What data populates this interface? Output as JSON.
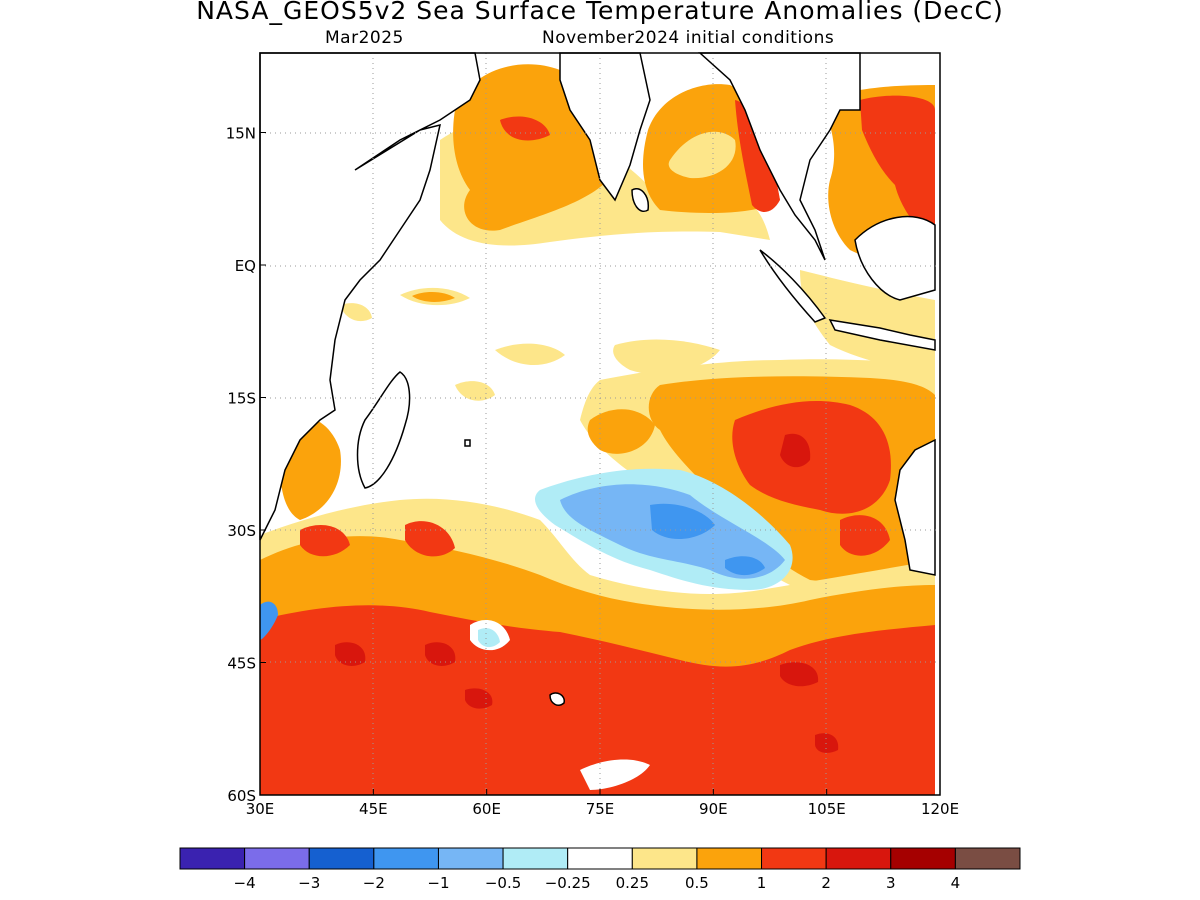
{
  "header": {
    "title": "NASA_GEOS5v2 Sea Surface Temperature Anomalies (DecC)",
    "valid_month": "Mar2025",
    "init": "November2024 initial conditions"
  },
  "colors": {
    "n4": "#3a22b0",
    "n3": "#7b6cea",
    "n2": "#1560d0",
    "n1": "#3f96f0",
    "n05": "#76b6f5",
    "n025": "#b0ecf6",
    "zero": "#ffffff",
    "p025": "#fde68a",
    "p05": "#fba30c",
    "p1": "#f23813",
    "p2": "#d8160d",
    "p3": "#a50000",
    "p4": "#7a4d43"
  },
  "chart_data": {
    "type": "heatmap",
    "title": "NASA_GEOS5v2 Sea Surface Temperature Anomalies (DecC)",
    "xlim": [
      30,
      120
    ],
    "ylim": [
      -60,
      24
    ],
    "x_ticks": [
      {
        "value": 30,
        "label": "30E"
      },
      {
        "value": 45,
        "label": "45E"
      },
      {
        "value": 60,
        "label": "60E"
      },
      {
        "value": 75,
        "label": "75E"
      },
      {
        "value": 90,
        "label": "90E"
      },
      {
        "value": 105,
        "label": "105E"
      },
      {
        "value": 120,
        "label": "120E"
      }
    ],
    "y_ticks": [
      {
        "value": 15,
        "label": "15N"
      },
      {
        "value": 0,
        "label": "EQ"
      },
      {
        "value": -15,
        "label": "15S"
      },
      {
        "value": -30,
        "label": "30S"
      },
      {
        "value": -45,
        "label": "45S"
      },
      {
        "value": -60,
        "label": "60S"
      }
    ],
    "grid": "dotted",
    "colorbar": {
      "labels": [
        "−4",
        "−3",
        "−2",
        "−1",
        "−0.5",
        "−0.25",
        "0.25",
        "0.5",
        "1",
        "2",
        "3",
        "4"
      ],
      "colors": [
        "#3a22b0",
        "#7b6cea",
        "#1560d0",
        "#3f96f0",
        "#76b6f5",
        "#b0ecf6",
        "#ffffff",
        "#fde68a",
        "#fba30c",
        "#f23813",
        "#d8160d",
        "#a50000",
        "#7a4d43"
      ]
    },
    "anomaly_regions": [
      {
        "level": 1,
        "polygon": [
          [
            30,
            -36
          ],
          [
            40,
            -38
          ],
          [
            50,
            -37
          ],
          [
            60,
            -39
          ],
          [
            70,
            -40
          ],
          [
            78,
            -43
          ],
          [
            88,
            -42
          ],
          [
            96,
            -38
          ],
          [
            105,
            -34
          ],
          [
            112,
            -36
          ],
          [
            120,
            -33
          ],
          [
            120,
            -60
          ],
          [
            30,
            -60
          ]
        ]
      },
      {
        "level": 0.5,
        "polygon": [
          [
            88,
            -9
          ],
          [
            98,
            -10
          ],
          [
            108,
            -11
          ],
          [
            118,
            -13
          ],
          [
            120,
            -16
          ],
          [
            120,
            -33
          ],
          [
            110,
            -36
          ],
          [
            100,
            -35
          ],
          [
            95,
            -34
          ],
          [
            92,
            -28
          ],
          [
            88,
            -22
          ],
          [
            82,
            -18
          ],
          [
            80,
            -15
          ]
        ]
      },
      {
        "level": 1,
        "polygon": [
          [
            93,
            -15
          ],
          [
            100,
            -14
          ],
          [
            106,
            -16
          ],
          [
            114,
            -18
          ],
          [
            116,
            -26
          ],
          [
            112,
            -28
          ],
          [
            103,
            -26
          ],
          [
            97,
            -27
          ],
          [
            94,
            -22
          ]
        ]
      },
      {
        "level": 2,
        "polygon": [
          [
            99,
            -19
          ],
          [
            104,
            -18
          ],
          [
            106,
            -22
          ],
          [
            102,
            -24
          ],
          [
            99,
            -22
          ]
        ]
      },
      {
        "level": 0.5,
        "polygon": [
          [
            57,
            20
          ],
          [
            66,
            20
          ],
          [
            73,
            18
          ],
          [
            74,
            12
          ],
          [
            77,
            8
          ],
          [
            73,
            5
          ],
          [
            67,
            5
          ],
          [
            60,
            7
          ],
          [
            56,
            10
          ],
          [
            55,
            15
          ]
        ]
      },
      {
        "level": 1,
        "polygon": [
          [
            61,
            15
          ],
          [
            66,
            16
          ],
          [
            69,
            15
          ],
          [
            66,
            13
          ],
          [
            62,
            13
          ]
        ]
      },
      {
        "level": 0.5,
        "polygon": [
          [
            80,
            18
          ],
          [
            85,
            21
          ],
          [
            91,
            22
          ],
          [
            95,
            18
          ],
          [
            94,
            12
          ],
          [
            91,
            7
          ],
          [
            86,
            6
          ],
          [
            81,
            7
          ],
          [
            80,
            12
          ]
        ]
      },
      {
        "level": 1,
        "polygon": [
          [
            109,
            22
          ],
          [
            118,
            22
          ],
          [
            118,
            12
          ],
          [
            112,
            9
          ],
          [
            109,
            12
          ]
        ]
      },
      {
        "level": -0.5,
        "polygon": [
          [
            83,
            -28
          ],
          [
            88,
            -26
          ],
          [
            93,
            -29
          ],
          [
            99,
            -33
          ],
          [
            96,
            -36
          ],
          [
            88,
            -36
          ],
          [
            85,
            -33
          ],
          [
            81,
            -31
          ]
        ]
      },
      {
        "level": -1,
        "polygon": [
          [
            87,
            -29
          ],
          [
            91,
            -29
          ],
          [
            92,
            -31
          ],
          [
            88,
            -33
          ]
        ]
      },
      {
        "level": 0.25,
        "polygon": [
          [
            30,
            -27
          ],
          [
            45,
            -26
          ],
          [
            60,
            -28
          ],
          [
            70,
            -31
          ],
          [
            73,
            -36
          ],
          [
            60,
            -37
          ],
          [
            45,
            -35
          ],
          [
            30,
            -34
          ]
        ]
      },
      {
        "level": 0.5,
        "polygon": [
          [
            42,
            -30
          ],
          [
            46,
            -29
          ],
          [
            48,
            -32
          ],
          [
            44,
            -33
          ]
        ]
      },
      {
        "level": 2,
        "polygon": [
          [
            40,
            -45
          ],
          [
            45,
            -44
          ],
          [
            47,
            -46
          ],
          [
            42,
            -47
          ]
        ]
      },
      {
        "level": 2,
        "polygon": [
          [
            99,
            -46
          ],
          [
            104,
            -45
          ],
          [
            107,
            -47
          ],
          [
            102,
            -48
          ]
        ]
      }
    ]
  }
}
